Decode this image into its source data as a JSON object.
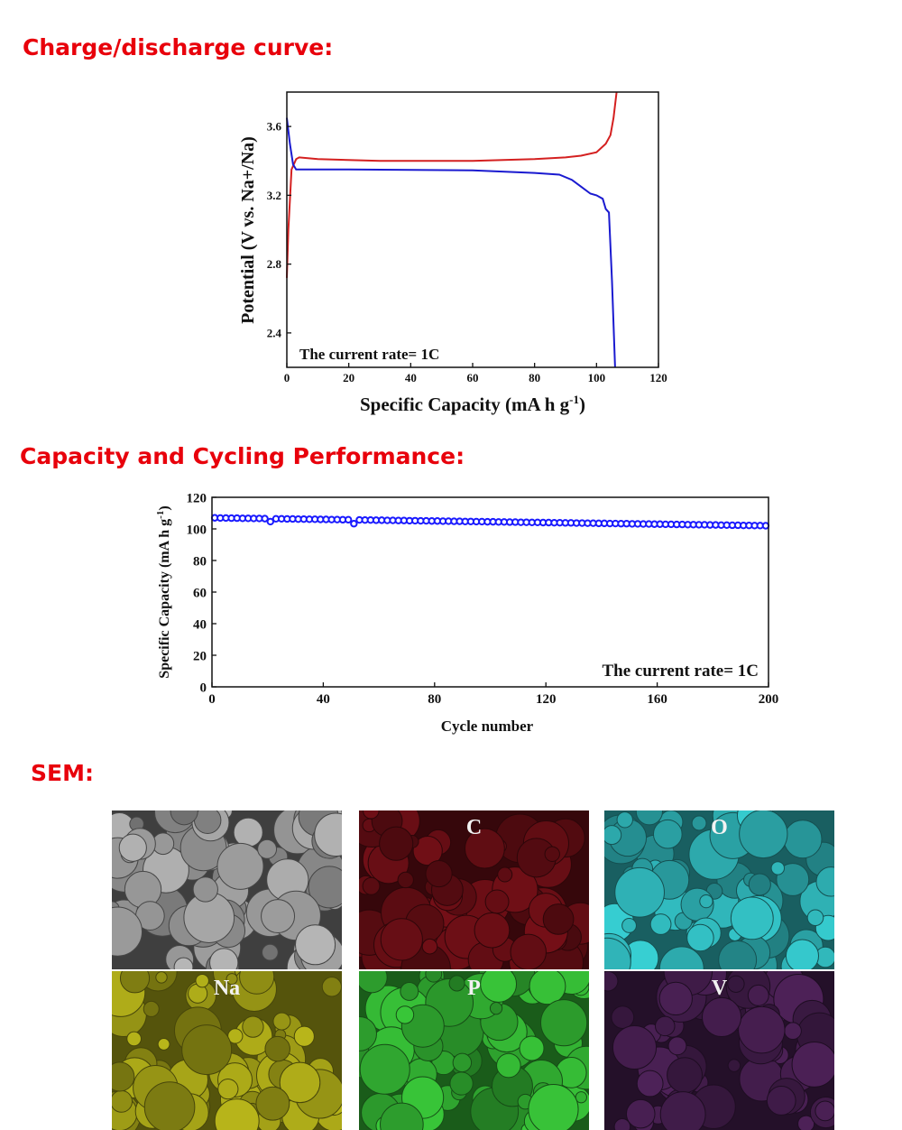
{
  "sections": {
    "charge_heading": "Charge/discharge curve:",
    "cycling_heading": "Capacity and Cycling Performance:",
    "sem_heading": "SEM:"
  },
  "chart_data": [
    {
      "type": "line",
      "xlabel": "Specific Capacity (mA h g",
      "xlabel_sup": "-1",
      "xlabel_end": ")",
      "ylabel": "Potential (V vs. Na+/Na)",
      "xlim": [
        0,
        120
      ],
      "ylim": [
        2.2,
        3.8
      ],
      "xticks": [
        "0",
        "20",
        "40",
        "60",
        "80",
        "100",
        "120"
      ],
      "yticks": [
        "2.4",
        "2.8",
        "3.2",
        "3.6"
      ],
      "grid": false,
      "annotation": "The current rate= 1C",
      "colors": {
        "charge": "#d42020",
        "discharge": "#1a1ad0"
      },
      "series": [
        {
          "x": [
            0,
            0.5,
            1.5,
            3,
            4,
            10,
            30,
            60,
            80,
            90,
            95,
            100,
            103,
            104.5,
            105.5,
            106.5
          ],
          "y": [
            2.72,
            3.0,
            3.35,
            3.41,
            3.42,
            3.41,
            3.4,
            3.4,
            3.41,
            3.42,
            3.43,
            3.45,
            3.5,
            3.55,
            3.65,
            3.8
          ]
        },
        {
          "x": [
            0,
            1,
            2,
            3,
            20,
            60,
            80,
            88,
            92,
            95,
            98,
            100,
            102,
            103,
            104,
            105,
            106
          ],
          "y": [
            3.65,
            3.5,
            3.38,
            3.35,
            3.35,
            3.345,
            3.33,
            3.32,
            3.29,
            3.25,
            3.21,
            3.2,
            3.18,
            3.12,
            3.1,
            2.7,
            2.2
          ]
        }
      ]
    },
    {
      "type": "scatter",
      "xlabel": "Cycle number",
      "ylabel": "Specific Capacity (mA h g",
      "ylabel_sup": "-1",
      "ylabel_end": ")",
      "xlim": [
        0,
        200
      ],
      "ylim": [
        0,
        120
      ],
      "xticks": [
        "0",
        "40",
        "80",
        "120",
        "160",
        "200"
      ],
      "yticks": [
        "0",
        "20",
        "40",
        "60",
        "80",
        "100",
        "120"
      ],
      "grid": false,
      "annotation": "The current rate= 1C",
      "color": "#1a1aff",
      "x": [
        1,
        3,
        5,
        7,
        9,
        11,
        13,
        15,
        17,
        19,
        21,
        23,
        25,
        27,
        29,
        31,
        33,
        35,
        37,
        39,
        41,
        43,
        45,
        47,
        49,
        51,
        53,
        55,
        57,
        59,
        61,
        63,
        65,
        67,
        69,
        71,
        73,
        75,
        77,
        79,
        81,
        83,
        85,
        87,
        89,
        91,
        93,
        95,
        97,
        99,
        101,
        103,
        105,
        107,
        109,
        111,
        113,
        115,
        117,
        119,
        121,
        123,
        125,
        127,
        129,
        131,
        133,
        135,
        137,
        139,
        141,
        143,
        145,
        147,
        149,
        151,
        153,
        155,
        157,
        159,
        161,
        163,
        165,
        167,
        169,
        171,
        173,
        175,
        177,
        179,
        181,
        183,
        185,
        187,
        189,
        191,
        193,
        195,
        197,
        199
      ],
      "y": [
        107.0,
        106.9,
        106.9,
        106.8,
        106.8,
        106.7,
        106.7,
        106.6,
        106.6,
        106.5,
        104.6,
        106.4,
        106.4,
        106.3,
        106.3,
        106.2,
        106.2,
        106.1,
        106.1,
        106.0,
        106.0,
        105.9,
        105.9,
        105.8,
        105.8,
        103.3,
        105.7,
        105.6,
        105.6,
        105.5,
        105.5,
        105.4,
        105.4,
        105.3,
        105.3,
        105.2,
        105.2,
        105.1,
        105.1,
        105.0,
        105.0,
        104.9,
        104.9,
        104.8,
        104.8,
        104.7,
        104.7,
        104.6,
        104.6,
        104.5,
        104.5,
        104.4,
        104.4,
        104.3,
        104.3,
        104.2,
        104.2,
        104.1,
        104.1,
        104.0,
        104.0,
        103.9,
        103.9,
        103.8,
        103.8,
        103.7,
        103.7,
        103.6,
        103.6,
        103.5,
        103.5,
        103.4,
        103.4,
        103.3,
        103.3,
        103.2,
        103.2,
        103.1,
        103.1,
        103.0,
        103.0,
        102.9,
        102.9,
        102.8,
        102.8,
        102.7,
        102.7,
        102.6,
        102.6,
        102.5,
        102.5,
        102.4,
        102.4,
        102.3,
        102.3,
        102.2,
        102.2,
        102.1,
        102.1,
        102.0
      ]
    }
  ],
  "sem": {
    "tiles": [
      {
        "label": "",
        "color": "#8c8c8c"
      },
      {
        "label": "C",
        "color": "#5a0c12"
      },
      {
        "label": "O",
        "color": "#2a9fa2"
      },
      {
        "label": "Na",
        "color": "#8e8c14"
      },
      {
        "label": "P",
        "color": "#2c9a2c"
      },
      {
        "label": "V",
        "color": "#3c1a44"
      }
    ]
  }
}
